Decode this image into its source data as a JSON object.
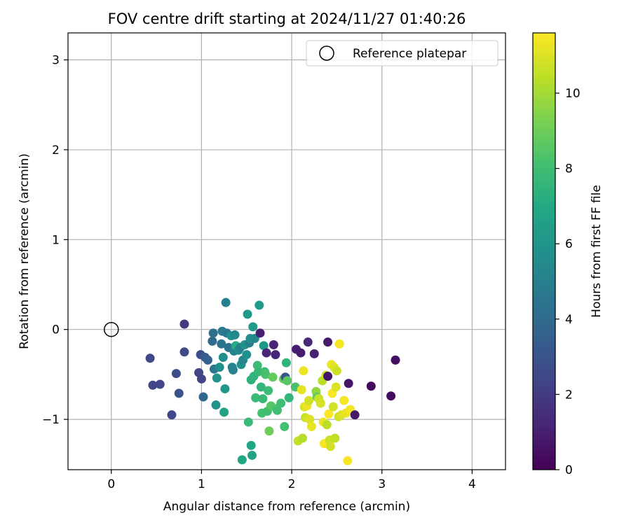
{
  "chart_data": {
    "type": "scatter",
    "title": "FOV centre drift starting at 2024/11/27 01:40:26",
    "xlabel": "Angular distance from reference (arcmin)",
    "ylabel": "Rotation from reference (arcmin)",
    "xlim": [
      -0.48,
      4.37
    ],
    "ylim": [
      -1.56,
      3.3
    ],
    "xticks": [
      0,
      1,
      2,
      3,
      4
    ],
    "xtick_labels": [
      "0",
      "1",
      "2",
      "3",
      "4"
    ],
    "yticks": [
      -1,
      0,
      1,
      2,
      3
    ],
    "ytick_labels": [
      "−1",
      "0",
      "1",
      "2",
      "3"
    ],
    "grid": true,
    "legend": {
      "position": "top-right",
      "entries": [
        {
          "label": "Reference platepar",
          "marker": "open-circle"
        }
      ]
    },
    "reference_point": {
      "x": 0,
      "y": 0
    },
    "colorbar": {
      "label": "Hours from first FF file",
      "colormap": "viridis",
      "range": [
        0,
        11.6
      ],
      "ticks": [
        0,
        2,
        4,
        6,
        8,
        10
      ],
      "tick_labels": [
        "0",
        "2",
        "4",
        "6",
        "8",
        "10"
      ]
    },
    "points": [
      [
        0.81,
        0.06,
        1.9
      ],
      [
        0.43,
        -0.32,
        2.5
      ],
      [
        0.46,
        -0.62,
        2.4
      ],
      [
        0.54,
        -0.61,
        2.4
      ],
      [
        0.67,
        -0.95,
        2.5
      ],
      [
        0.72,
        -0.49,
        2.7
      ],
      [
        0.75,
        -0.71,
        2.9
      ],
      [
        0.81,
        -0.25,
        2.6
      ],
      [
        0.97,
        -0.48,
        2.4
      ],
      [
        0.99,
        -0.28,
        2.7
      ],
      [
        1.0,
        -0.55,
        2.4
      ],
      [
        1.02,
        -0.75,
        3.9
      ],
      [
        1.04,
        -0.31,
        3.3
      ],
      [
        1.07,
        -0.34,
        3.5
      ],
      [
        1.12,
        -0.13,
        4.0
      ],
      [
        1.13,
        -0.04,
        4.2
      ],
      [
        1.14,
        -0.44,
        4.5
      ],
      [
        1.16,
        -0.84,
        5.9
      ],
      [
        1.17,
        -0.54,
        5.9
      ],
      [
        1.2,
        -0.42,
        5.7
      ],
      [
        1.22,
        -0.16,
        4.4
      ],
      [
        1.23,
        -0.02,
        4.7
      ],
      [
        1.24,
        -0.31,
        5.6
      ],
      [
        1.25,
        -0.92,
        6.6
      ],
      [
        1.26,
        -0.66,
        6.1
      ],
      [
        1.27,
        0.3,
        5.0
      ],
      [
        1.28,
        -0.04,
        4.6
      ],
      [
        1.3,
        -0.2,
        4.4
      ],
      [
        1.33,
        -0.07,
        5.8
      ],
      [
        1.34,
        -0.42,
        5.2
      ],
      [
        1.35,
        -0.45,
        5.1
      ],
      [
        1.36,
        -0.24,
        5.0
      ],
      [
        1.37,
        -0.06,
        5.4
      ],
      [
        1.38,
        -0.18,
        7.1
      ],
      [
        1.41,
        -0.23,
        5.5
      ],
      [
        1.43,
        -0.2,
        5.0
      ],
      [
        1.44,
        -0.39,
        5.8
      ],
      [
        1.45,
        -1.45,
        6.9
      ],
      [
        1.46,
        -0.34,
        5.3
      ],
      [
        1.48,
        -0.17,
        5.9
      ],
      [
        1.5,
        -0.28,
        5.8
      ],
      [
        1.51,
        0.17,
        6.2
      ],
      [
        1.52,
        -1.03,
        7.8
      ],
      [
        1.53,
        -0.15,
        4.9
      ],
      [
        1.54,
        -0.1,
        5.6
      ],
      [
        1.55,
        -0.56,
        7.4
      ],
      [
        1.55,
        -1.29,
        6.9
      ],
      [
        1.56,
        -1.4,
        6.7
      ],
      [
        1.57,
        0.03,
        6.3
      ],
      [
        1.58,
        -0.52,
        7.5
      ],
      [
        1.59,
        -0.1,
        5.4
      ],
      [
        1.6,
        -0.76,
        7.8
      ],
      [
        1.62,
        -0.4,
        7.9
      ],
      [
        1.63,
        -0.47,
        7.7
      ],
      [
        1.64,
        0.27,
        6.3
      ],
      [
        1.65,
        -0.04,
        1.0
      ],
      [
        1.66,
        -0.64,
        7.6
      ],
      [
        1.67,
        -0.93,
        8.1
      ],
      [
        1.68,
        -0.77,
        7.7
      ],
      [
        1.69,
        -0.18,
        6.1
      ],
      [
        1.7,
        -0.47,
        7.9
      ],
      [
        1.71,
        -0.5,
        8.2
      ],
      [
        1.72,
        -0.26,
        1.2
      ],
      [
        1.73,
        -0.91,
        8.0
      ],
      [
        1.74,
        -0.68,
        7.9
      ],
      [
        1.75,
        -1.13,
        9.0
      ],
      [
        1.77,
        -0.85,
        8.5
      ],
      [
        1.79,
        -0.53,
        8.8
      ],
      [
        1.8,
        -0.17,
        1.2
      ],
      [
        1.82,
        -0.28,
        1.3
      ],
      [
        1.83,
        -0.88,
        8.4
      ],
      [
        1.84,
        -0.9,
        8.0
      ],
      [
        1.88,
        -0.82,
        8.0
      ],
      [
        1.91,
        -0.55,
        8.8
      ],
      [
        1.92,
        -1.08,
        8.1
      ],
      [
        1.93,
        -0.53,
        3.1
      ],
      [
        1.94,
        -0.37,
        7.5
      ],
      [
        1.95,
        -0.57,
        8.6
      ],
      [
        1.97,
        -0.76,
        7.6
      ],
      [
        2.04,
        -0.64,
        8.2
      ],
      [
        2.05,
        -0.22,
        1.0
      ],
      [
        2.07,
        -1.24,
        10.6
      ],
      [
        2.1,
        -0.26,
        0.9
      ],
      [
        2.11,
        -0.67,
        11.2
      ],
      [
        2.12,
        -1.21,
        10.3
      ],
      [
        2.13,
        -0.46,
        11.3
      ],
      [
        2.14,
        -0.86,
        11.0
      ],
      [
        2.15,
        -0.98,
        10.7
      ],
      [
        2.17,
        -0.85,
        11.3
      ],
      [
        2.18,
        -0.14,
        1.3
      ],
      [
        2.19,
        -0.79,
        10.8
      ],
      [
        2.2,
        -1.0,
        11.0
      ],
      [
        2.22,
        -1.08,
        11.2
      ],
      [
        2.25,
        -0.27,
        1.1
      ],
      [
        2.27,
        -0.69,
        9.7
      ],
      [
        2.28,
        -0.75,
        8.8
      ],
      [
        2.3,
        -0.77,
        10.7
      ],
      [
        2.32,
        -0.82,
        10.9
      ],
      [
        2.34,
        -0.57,
        10.4
      ],
      [
        2.35,
        -1.03,
        11.3
      ],
      [
        2.36,
        -1.27,
        11.5
      ],
      [
        2.38,
        -0.51,
        10.6
      ],
      [
        2.39,
        -1.06,
        10.4
      ],
      [
        2.4,
        -0.14,
        0.8
      ],
      [
        2.41,
        -0.94,
        11.6
      ],
      [
        2.42,
        -1.23,
        10.7
      ],
      [
        2.43,
        -1.3,
        10.8
      ],
      [
        2.44,
        -0.39,
        11.3
      ],
      [
        2.45,
        -0.71,
        11.5
      ],
      [
        2.46,
        -0.86,
        10.8
      ],
      [
        2.47,
        -0.42,
        11.1
      ],
      [
        2.48,
        -1.21,
        10.5
      ],
      [
        2.49,
        -0.64,
        11.0
      ],
      [
        2.5,
        -0.46,
        10.7
      ],
      [
        2.52,
        -0.97,
        10.8
      ],
      [
        2.53,
        -0.16,
        11.4
      ],
      [
        2.55,
        -0.95,
        11.0
      ],
      [
        2.58,
        -0.79,
        11.4
      ],
      [
        2.6,
        -0.93,
        11.3
      ],
      [
        2.62,
        -1.46,
        11.5
      ],
      [
        2.63,
        -0.6,
        0.6
      ],
      [
        2.65,
        -0.89,
        11.4
      ],
      [
        2.7,
        -0.95,
        0.8
      ],
      [
        2.88,
        -0.63,
        0.3
      ],
      [
        3.1,
        -0.74,
        0.4
      ],
      [
        3.15,
        -0.34,
        0.5
      ],
      [
        2.4,
        -0.52,
        0.7
      ]
    ]
  }
}
